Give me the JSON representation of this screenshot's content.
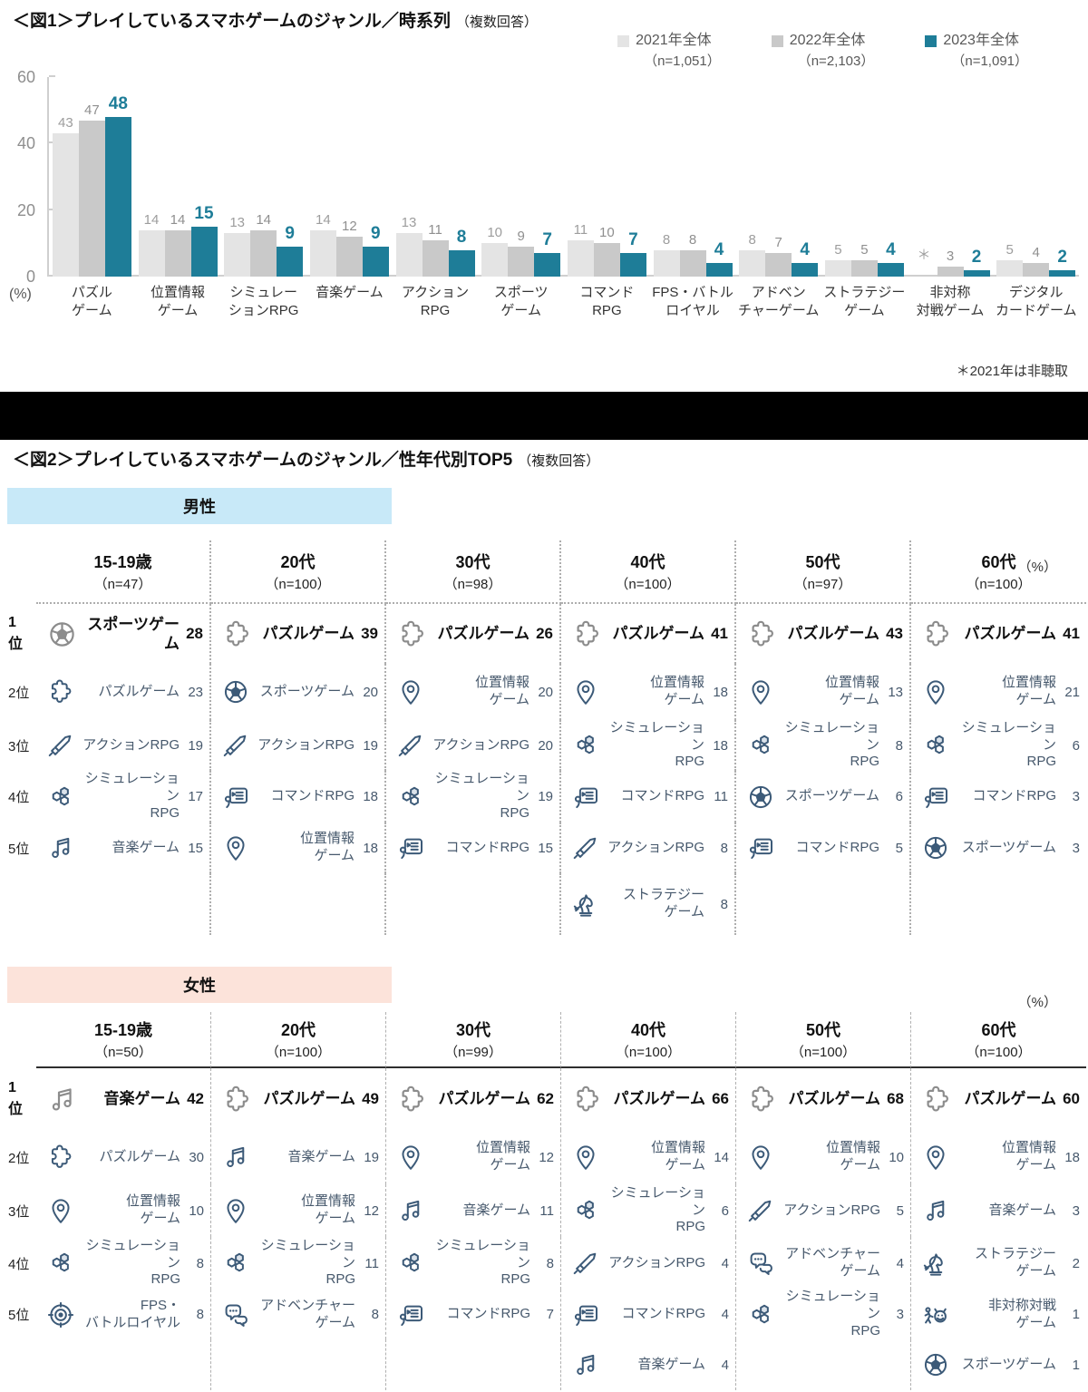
{
  "colors": {
    "accent_teal": "#1e7d98",
    "bar_2021": "#e4e4e4",
    "bar_2022": "#c9c9c9",
    "value_2021": "#9d9d9d",
    "value_2022": "#8f8f8f",
    "male_header_bg": "#c8e9f8",
    "female_header_bg": "#fce3da",
    "icon_blue": "#3c5a78",
    "icon_gray": "#8c8c8c",
    "cell_text": "#46586c",
    "rank1_text": "#111111",
    "hex_fill": "#dbe3eb"
  },
  "fig1": {
    "title": "＜図1＞プレイしているスマホゲームのジャンル／時系列",
    "title_note": "（複数回答）",
    "unit": "(%)",
    "footnote": "＊2021年は非聴取",
    "legend": [
      {
        "label": "2021年全体",
        "n": "（n=1,051）"
      },
      {
        "label": "2022年全体",
        "n": "（n=2,103）"
      },
      {
        "label": "2023年全体",
        "n": "（n=1,091）"
      }
    ],
    "chart_data": {
      "type": "bar",
      "title": "プレイしているスマホゲームのジャンル／時系列",
      "ylabel": "%",
      "ylim": [
        0,
        60
      ],
      "yticks": [
        0,
        20,
        40,
        60
      ],
      "grid": false,
      "legend_position": "top-right",
      "missing_marker": "＊",
      "categories": [
        {
          "label": "パズルゲーム",
          "lines": [
            "パズル",
            "ゲーム"
          ]
        },
        {
          "label": "位置情報ゲーム",
          "lines": [
            "位置情報",
            "ゲーム"
          ]
        },
        {
          "label": "シミュレーションRPG",
          "lines": [
            "シミュレー",
            "ションRPG"
          ]
        },
        {
          "label": "音楽ゲーム",
          "lines": [
            "音楽ゲーム"
          ]
        },
        {
          "label": "アクションRPG",
          "lines": [
            "アクション",
            "RPG"
          ]
        },
        {
          "label": "スポーツゲーム",
          "lines": [
            "スポーツ",
            "ゲーム"
          ]
        },
        {
          "label": "コマンドRPG",
          "lines": [
            "コマンド",
            "RPG"
          ]
        },
        {
          "label": "FPS・バトルロイヤル",
          "lines": [
            "FPS・バトル",
            "ロイヤル"
          ]
        },
        {
          "label": "アドベンチャーゲーム",
          "lines": [
            "アドベン",
            "チャーゲーム"
          ]
        },
        {
          "label": "ストラテジーゲーム",
          "lines": [
            "ストラテジー",
            "ゲーム"
          ]
        },
        {
          "label": "非対称対戦ゲーム",
          "lines": [
            "非対称",
            "対戦ゲーム"
          ]
        },
        {
          "label": "デジタルカードゲーム",
          "lines": [
            "デジタル",
            "カードゲーム"
          ]
        }
      ],
      "series": [
        {
          "name": "2021年全体",
          "color_key": "bar_2021",
          "value_color_key": "value_2021",
          "value_bold": false,
          "values": [
            43,
            14,
            13,
            14,
            13,
            10,
            11,
            8,
            8,
            5,
            null,
            5
          ]
        },
        {
          "name": "2022年全体",
          "color_key": "bar_2022",
          "value_color_key": "value_2022",
          "value_bold": false,
          "values": [
            47,
            14,
            14,
            12,
            11,
            9,
            10,
            8,
            7,
            5,
            3,
            4
          ]
        },
        {
          "name": "2023年全体",
          "color_key": "accent_teal",
          "value_color_key": "accent_teal",
          "value_bold": true,
          "values": [
            48,
            15,
            9,
            9,
            8,
            7,
            7,
            4,
            4,
            4,
            2,
            2
          ]
        }
      ]
    }
  },
  "fig2": {
    "title": "＜図2＞プレイしているスマホゲームのジャンル／性年代別TOP5",
    "title_note": "（複数回答）",
    "unit": "（%）",
    "rank_labels": [
      "1位",
      "2位",
      "3位",
      "4位",
      "5位",
      ""
    ],
    "genders": [
      {
        "name": "男性",
        "bg_key": "male_header_bg",
        "columns": [
          {
            "age": "15-19歳",
            "n": "（n=47）",
            "items": [
              {
                "icon": "sports",
                "lines": [
                  "スポーツゲーム"
                ],
                "value": "28"
              },
              {
                "icon": "puzzle",
                "lines": [
                  "パズルゲーム"
                ],
                "value": "23"
              },
              {
                "icon": "sword",
                "lines": [
                  "アクションRPG"
                ],
                "value": "19"
              },
              {
                "icon": "hex",
                "lines": [
                  "シミュレーション",
                  "RPG"
                ],
                "value": "17"
              },
              {
                "icon": "music",
                "lines": [
                  "音楽ゲーム"
                ],
                "value": "15"
              }
            ]
          },
          {
            "age": "20代",
            "n": "（n=100）",
            "items": [
              {
                "icon": "puzzle",
                "lines": [
                  "パズルゲーム"
                ],
                "value": "39"
              },
              {
                "icon": "sports",
                "lines": [
                  "スポーツゲーム"
                ],
                "value": "20"
              },
              {
                "icon": "sword",
                "lines": [
                  "アクションRPG"
                ],
                "value": "19"
              },
              {
                "icon": "command",
                "lines": [
                  "コマンドRPG"
                ],
                "value": "18"
              },
              {
                "icon": "pin",
                "lines": [
                  "位置情報",
                  "ゲーム"
                ],
                "value": "18"
              }
            ]
          },
          {
            "age": "30代",
            "n": "（n=98）",
            "items": [
              {
                "icon": "puzzle",
                "lines": [
                  "パズルゲーム"
                ],
                "value": "26"
              },
              {
                "icon": "pin",
                "lines": [
                  "位置情報",
                  "ゲーム"
                ],
                "value": "20"
              },
              {
                "icon": "sword",
                "lines": [
                  "アクションRPG"
                ],
                "value": "20"
              },
              {
                "icon": "hex",
                "lines": [
                  "シミュレーション",
                  "RPG"
                ],
                "value": "19"
              },
              {
                "icon": "command",
                "lines": [
                  "コマンドRPG"
                ],
                "value": "15"
              }
            ]
          },
          {
            "age": "40代",
            "n": "（n=100）",
            "items": [
              {
                "icon": "puzzle",
                "lines": [
                  "パズルゲーム"
                ],
                "value": "41"
              },
              {
                "icon": "pin",
                "lines": [
                  "位置情報",
                  "ゲーム"
                ],
                "value": "18"
              },
              {
                "icon": "hex",
                "lines": [
                  "シミュレーション",
                  "RPG"
                ],
                "value": "18"
              },
              {
                "icon": "command",
                "lines": [
                  "コマンドRPG"
                ],
                "value": "11"
              },
              {
                "icon": "sword",
                "lines": [
                  "アクションRPG"
                ],
                "value": "8"
              },
              {
                "icon": "knight",
                "lines": [
                  "ストラテジー",
                  "ゲーム"
                ],
                "value": "8"
              }
            ]
          },
          {
            "age": "50代",
            "n": "（n=97）",
            "items": [
              {
                "icon": "puzzle",
                "lines": [
                  "パズルゲーム"
                ],
                "value": "43"
              },
              {
                "icon": "pin",
                "lines": [
                  "位置情報",
                  "ゲーム"
                ],
                "value": "13"
              },
              {
                "icon": "hex",
                "lines": [
                  "シミュレーション",
                  "RPG"
                ],
                "value": "8"
              },
              {
                "icon": "sports",
                "lines": [
                  "スポーツゲーム"
                ],
                "value": "6"
              },
              {
                "icon": "command",
                "lines": [
                  "コマンドRPG"
                ],
                "value": "5"
              }
            ]
          },
          {
            "age": "60代",
            "n": "（n=100）",
            "items": [
              {
                "icon": "puzzle",
                "lines": [
                  "パズルゲーム"
                ],
                "value": "41"
              },
              {
                "icon": "pin",
                "lines": [
                  "位置情報",
                  "ゲーム"
                ],
                "value": "21"
              },
              {
                "icon": "hex",
                "lines": [
                  "シミュレーション",
                  "RPG"
                ],
                "value": "6"
              },
              {
                "icon": "command",
                "lines": [
                  "コマンドRPG"
                ],
                "value": "3"
              },
              {
                "icon": "sports",
                "lines": [
                  "スポーツゲーム"
                ],
                "value": "3"
              }
            ]
          }
        ]
      },
      {
        "name": "女性",
        "bg_key": "female_header_bg",
        "columns": [
          {
            "age": "15-19歳",
            "n": "（n=50）",
            "items": [
              {
                "icon": "music",
                "lines": [
                  "音楽ゲーム"
                ],
                "value": "42"
              },
              {
                "icon": "puzzle",
                "lines": [
                  "パズルゲーム"
                ],
                "value": "30"
              },
              {
                "icon": "pin",
                "lines": [
                  "位置情報",
                  "ゲーム"
                ],
                "value": "10"
              },
              {
                "icon": "hex",
                "lines": [
                  "シミュレーション",
                  "RPG"
                ],
                "value": "8"
              },
              {
                "icon": "target",
                "lines": [
                  "FPS・",
                  "バトルロイヤル"
                ],
                "value": "8"
              }
            ]
          },
          {
            "age": "20代",
            "n": "（n=100）",
            "items": [
              {
                "icon": "puzzle",
                "lines": [
                  "パズルゲーム"
                ],
                "value": "49"
              },
              {
                "icon": "music",
                "lines": [
                  "音楽ゲーム"
                ],
                "value": "19"
              },
              {
                "icon": "pin",
                "lines": [
                  "位置情報",
                  "ゲーム"
                ],
                "value": "12"
              },
              {
                "icon": "hex",
                "lines": [
                  "シミュレーション",
                  "RPG"
                ],
                "value": "11"
              },
              {
                "icon": "chat",
                "lines": [
                  "アドベンチャー",
                  "ゲーム"
                ],
                "value": "8"
              }
            ]
          },
          {
            "age": "30代",
            "n": "（n=99）",
            "items": [
              {
                "icon": "puzzle",
                "lines": [
                  "パズルゲーム"
                ],
                "value": "62"
              },
              {
                "icon": "pin",
                "lines": [
                  "位置情報",
                  "ゲーム"
                ],
                "value": "12"
              },
              {
                "icon": "music",
                "lines": [
                  "音楽ゲーム"
                ],
                "value": "11"
              },
              {
                "icon": "hex",
                "lines": [
                  "シミュレーション",
                  "RPG"
                ],
                "value": "8"
              },
              {
                "icon": "command",
                "lines": [
                  "コマンドRPG"
                ],
                "value": "7"
              }
            ]
          },
          {
            "age": "40代",
            "n": "（n=100）",
            "items": [
              {
                "icon": "puzzle",
                "lines": [
                  "パズルゲーム"
                ],
                "value": "66"
              },
              {
                "icon": "pin",
                "lines": [
                  "位置情報",
                  "ゲーム"
                ],
                "value": "14"
              },
              {
                "icon": "hex",
                "lines": [
                  "シミュレーション",
                  "RPG"
                ],
                "value": "6"
              },
              {
                "icon": "sword",
                "lines": [
                  "アクションRPG"
                ],
                "value": "4"
              },
              {
                "icon": "command",
                "lines": [
                  "コマンドRPG"
                ],
                "value": "4"
              },
              {
                "icon": "music",
                "lines": [
                  "音楽ゲーム"
                ],
                "value": "4"
              }
            ]
          },
          {
            "age": "50代",
            "n": "（n=100）",
            "items": [
              {
                "icon": "puzzle",
                "lines": [
                  "パズルゲーム"
                ],
                "value": "68"
              },
              {
                "icon": "pin",
                "lines": [
                  "位置情報",
                  "ゲーム"
                ],
                "value": "10"
              },
              {
                "icon": "sword",
                "lines": [
                  "アクションRPG"
                ],
                "value": "5"
              },
              {
                "icon": "chat",
                "lines": [
                  "アドベンチャー",
                  "ゲーム"
                ],
                "value": "4"
              },
              {
                "icon": "hex",
                "lines": [
                  "シミュレーション",
                  "RPG"
                ],
                "value": "3"
              }
            ]
          },
          {
            "age": "60代",
            "n": "（n=100）",
            "items": [
              {
                "icon": "puzzle",
                "lines": [
                  "パズルゲーム"
                ],
                "value": "60"
              },
              {
                "icon": "pin",
                "lines": [
                  "位置情報",
                  "ゲーム"
                ],
                "value": "18"
              },
              {
                "icon": "music",
                "lines": [
                  "音楽ゲーム"
                ],
                "value": "3"
              },
              {
                "icon": "knight",
                "lines": [
                  "ストラテジー",
                  "ゲーム"
                ],
                "value": "2"
              },
              {
                "icon": "asym",
                "lines": [
                  "非対称対戦",
                  "ゲーム"
                ],
                "value": "1"
              },
              {
                "icon": "sports",
                "lines": [
                  "スポーツゲーム"
                ],
                "value": "1"
              }
            ]
          }
        ]
      }
    ]
  }
}
